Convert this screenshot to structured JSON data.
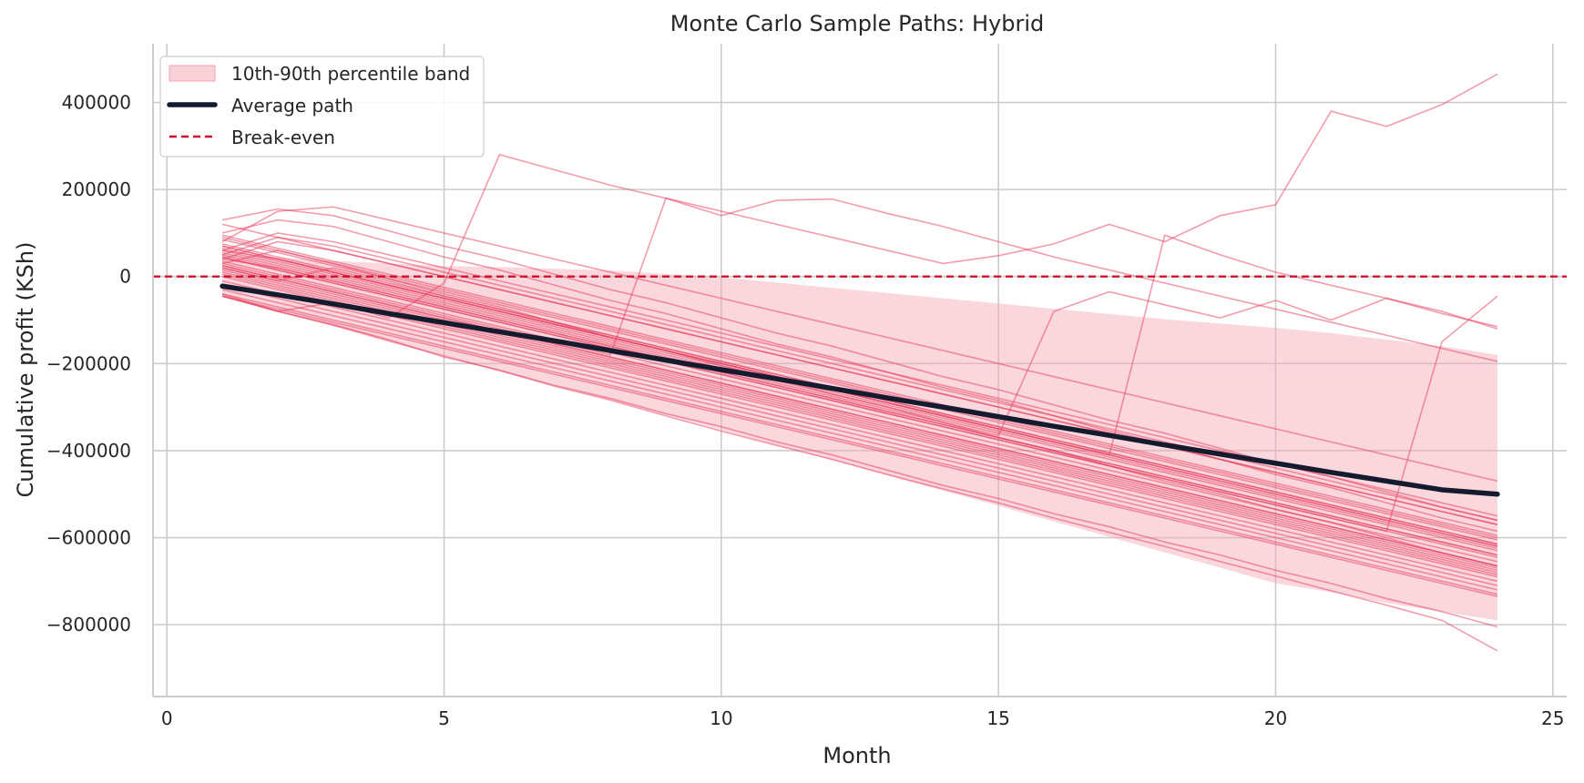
{
  "chart_data": {
    "type": "line",
    "title": "Monte Carlo Sample Paths: Hybrid",
    "xlabel": "Month",
    "ylabel": "Cumulative profit (KSh)",
    "xlim": [
      -0.25,
      25.25
    ],
    "ylim": [
      -965000,
      535000
    ],
    "xticks": [
      0,
      5,
      10,
      15,
      20,
      25
    ],
    "yticks": [
      400000,
      200000,
      0,
      -200000,
      -400000,
      -600000,
      -800000
    ],
    "grid": true,
    "legend_position": "top-left",
    "colors": {
      "paths": "#e8395c",
      "band": "#f4a3b3",
      "average": "#141b2e",
      "break_even": "#d0102a",
      "grid": "#cccccc"
    },
    "legend": [
      {
        "label": "10th-90th percentile band",
        "kind": "band"
      },
      {
        "label": "Average path",
        "kind": "average"
      },
      {
        "label": "Break-even",
        "kind": "break_even"
      }
    ],
    "x": [
      1,
      2,
      3,
      4,
      5,
      6,
      7,
      8,
      9,
      10,
      11,
      12,
      13,
      14,
      15,
      16,
      17,
      18,
      19,
      20,
      21,
      22,
      23,
      24
    ],
    "average_path": [
      -22000,
      -42000,
      -63000,
      -85000,
      -106000,
      -127000,
      -148000,
      -170000,
      -192000,
      -214000,
      -235000,
      -257000,
      -279000,
      -300000,
      -322000,
      -344000,
      -365000,
      -387000,
      -408000,
      -429000,
      -450000,
      -470000,
      -490000,
      -500000
    ],
    "band_p10": [
      -46000,
      -80000,
      -113000,
      -147000,
      -180000,
      -214000,
      -248000,
      -283000,
      -317000,
      -352000,
      -387000,
      -422000,
      -457000,
      -492000,
      -527000,
      -563000,
      -598000,
      -634000,
      -669000,
      -705000,
      -725000,
      -750000,
      -770000,
      -790000
    ],
    "band_p90": [
      52000,
      44000,
      36000,
      30000,
      24000,
      22000,
      18000,
      14000,
      6000,
      -2000,
      -14000,
      -26000,
      -38000,
      -50000,
      -62000,
      -74000,
      -86000,
      -98000,
      -108000,
      -118000,
      -130000,
      -145000,
      -160000,
      -180000
    ],
    "break_even": 0,
    "paths": [
      [
        -45000,
        -80000,
        -110000,
        -145000,
        -185000,
        -215000,
        -250000,
        -280000,
        -315000,
        -345000,
        -380000,
        -410000,
        -445000,
        -480000,
        -510000,
        -545000,
        -575000,
        -610000,
        -640000,
        -675000,
        -705000,
        -740000,
        -770000,
        -805000
      ],
      [
        -45000,
        -80000,
        -112000,
        -148000,
        -182000,
        -216000,
        -252000,
        -284000,
        -320000,
        -355000,
        -388000,
        -420000,
        -455000,
        -488000,
        -520000,
        -555000,
        -588000,
        -620000,
        -655000,
        -688000,
        -722000,
        -755000,
        -790000,
        -860000
      ],
      [
        30000,
        60000,
        30000,
        -5000,
        -40000,
        -70000,
        -105000,
        -140000,
        -170000,
        -205000,
        -235000,
        -270000,
        -300000,
        -335000,
        -370000,
        -400000,
        -435000,
        -470000,
        -500000,
        -535000,
        -565000,
        -600000,
        -635000,
        -665000
      ],
      [
        130000,
        155000,
        140000,
        105000,
        70000,
        40000,
        5000,
        -30000,
        -60000,
        -95000,
        -130000,
        -160000,
        -195000,
        -230000,
        -260000,
        -295000,
        -330000,
        -360000,
        -395000,
        -430000,
        -460000,
        -495000,
        -530000,
        -560000
      ],
      [
        100000,
        130000,
        115000,
        80000,
        45000,
        15000,
        -20000,
        -55000,
        -85000,
        -120000,
        -155000,
        -185000,
        -220000,
        -255000,
        -285000,
        -320000,
        -355000,
        -385000,
        -420000,
        -455000,
        -485000,
        -520000,
        -555000,
        -585000
      ],
      [
        60000,
        40000,
        10000,
        -20000,
        -50000,
        -80000,
        -110000,
        -140000,
        -170000,
        -200000,
        -230000,
        -260000,
        -290000,
        -320000,
        -350000,
        -380000,
        -410000,
        -440000,
        -470000,
        -500000,
        -530000,
        -560000,
        -590000,
        -620000
      ],
      [
        40000,
        20000,
        -10000,
        -40000,
        -70000,
        -100000,
        -130000,
        -160000,
        -190000,
        -220000,
        -250000,
        -280000,
        -310000,
        -340000,
        -370000,
        -400000,
        -430000,
        -460000,
        -490000,
        -520000,
        -550000,
        -580000,
        -610000,
        -640000
      ],
      [
        80000,
        150000,
        160000,
        130000,
        100000,
        70000,
        40000,
        10000,
        -20000,
        -50000,
        -80000,
        -110000,
        -140000,
        -170000,
        -200000,
        -230000,
        -260000,
        -290000,
        -320000,
        -350000,
        -380000,
        -410000,
        -440000,
        -470000
      ],
      [
        20000,
        -10000,
        20000,
        -10000,
        -45000,
        -75000,
        -105000,
        -135000,
        -165000,
        -195000,
        -225000,
        -255000,
        -285000,
        -315000,
        -345000,
        -375000,
        -405000,
        -435000,
        -465000,
        -495000,
        -525000,
        -555000,
        -585000,
        -615000
      ],
      [
        -40000,
        -80000,
        -60000,
        -95000,
        -15000,
        280000,
        245000,
        210000,
        180000,
        140000,
        175000,
        178000,
        145000,
        115000,
        80000,
        45000,
        15000,
        -15000,
        -45000,
        -75000,
        -105000,
        -135000,
        -165000,
        -195000
      ],
      [
        30000,
        0,
        -30000,
        -60000,
        -90000,
        -120000,
        -150000,
        -180000,
        180000,
        150000,
        120000,
        90000,
        60000,
        30000,
        48000,
        75000,
        120000,
        80000,
        140000,
        165000,
        380000,
        345000,
        395000,
        465000
      ],
      [
        55000,
        25000,
        -5000,
        -35000,
        -65000,
        -95000,
        -125000,
        -155000,
        -185000,
        -215000,
        -245000,
        -275000,
        -305000,
        -335000,
        -365000,
        -80000,
        -35000,
        -65000,
        -95000,
        -55000,
        -100000,
        -50000,
        -80000,
        -120000
      ],
      [
        70000,
        40000,
        10000,
        -20000,
        -50000,
        -80000,
        -110000,
        -140000,
        -170000,
        -200000,
        -230000,
        -260000,
        -290000,
        -320000,
        -350000,
        -380000,
        -410000,
        95000,
        50000,
        10000,
        -20000,
        -50000,
        -85000,
        -115000
      ],
      [
        45000,
        15000,
        -15000,
        -45000,
        -75000,
        -105000,
        -135000,
        -165000,
        -195000,
        -225000,
        -255000,
        -285000,
        -315000,
        -345000,
        -375000,
        -405000,
        -435000,
        -465000,
        -495000,
        -525000,
        -555000,
        -585000,
        -150000,
        -45000
      ],
      [
        90000,
        60000,
        30000,
        0,
        -30000,
        -60000,
        -90000,
        -120000,
        -150000,
        -180000,
        -210000,
        -240000,
        -270000,
        -300000,
        -330000,
        -360000,
        -390000,
        -420000,
        -450000,
        -480000,
        -510000,
        -540000,
        -570000,
        -600000
      ],
      [
        25000,
        -5000,
        -35000,
        -65000,
        -95000,
        -125000,
        -155000,
        -185000,
        -215000,
        -245000,
        -275000,
        -305000,
        -335000,
        -365000,
        -395000,
        -425000,
        -455000,
        -485000,
        -515000,
        -545000,
        -575000,
        -605000,
        -635000,
        -665000
      ],
      [
        50000,
        20000,
        -10000,
        -40000,
        -70000,
        -100000,
        -130000,
        -160000,
        -190000,
        -220000,
        -250000,
        -280000,
        -310000,
        -340000,
        -370000,
        -400000,
        -430000,
        -460000,
        -490000,
        -520000,
        -550000,
        -580000,
        -610000,
        -640000
      ],
      [
        10000,
        -20000,
        -50000,
        -80000,
        -110000,
        -140000,
        -170000,
        -200000,
        -230000,
        -260000,
        -290000,
        -320000,
        -350000,
        -380000,
        -410000,
        -440000,
        -470000,
        -500000,
        -530000,
        -560000,
        -590000,
        -620000,
        -650000,
        -680000
      ],
      [
        60000,
        100000,
        80000,
        50000,
        20000,
        -10000,
        -40000,
        -70000,
        -100000,
        -130000,
        -160000,
        -190000,
        -220000,
        -250000,
        -280000,
        -310000,
        -340000,
        -370000,
        -400000,
        -430000,
        -460000,
        -490000,
        -520000,
        -550000
      ],
      [
        35000,
        5000,
        -25000,
        -55000,
        -85000,
        -115000,
        -145000,
        -175000,
        -205000,
        -235000,
        -265000,
        -295000,
        -325000,
        -355000,
        -385000,
        -415000,
        -445000,
        -475000,
        -505000,
        -535000,
        -565000,
        -595000,
        -625000,
        -655000
      ],
      [
        120000,
        90000,
        60000,
        30000,
        0,
        -30000,
        -60000,
        -90000,
        -120000,
        -150000,
        -180000,
        -210000,
        -240000,
        -270000,
        -300000,
        -330000,
        -360000,
        -390000,
        -420000,
        -450000,
        -480000,
        -510000,
        -540000,
        -570000
      ],
      [
        -20000,
        -50000,
        -80000,
        -110000,
        -140000,
        -170000,
        -200000,
        -230000,
        -260000,
        -290000,
        -320000,
        -350000,
        -380000,
        -410000,
        -440000,
        -470000,
        -500000,
        -530000,
        -560000,
        -590000,
        -620000,
        -650000,
        -680000,
        -710000
      ],
      [
        75000,
        45000,
        15000,
        -15000,
        -45000,
        -75000,
        -105000,
        -135000,
        -165000,
        -195000,
        -225000,
        -255000,
        -285000,
        -315000,
        -345000,
        -375000,
        -405000,
        -435000,
        -465000,
        -495000,
        -525000,
        -555000,
        -585000,
        -615000
      ],
      [
        40000,
        80000,
        60000,
        30000,
        0,
        -30000,
        -60000,
        -90000,
        -120000,
        -150000,
        -180000,
        -210000,
        -240000,
        -270000,
        -300000,
        -330000,
        -360000,
        -390000,
        -420000,
        -450000,
        -480000,
        -510000,
        -540000,
        -570000
      ],
      [
        15000,
        -15000,
        -45000,
        -75000,
        -105000,
        -135000,
        -165000,
        -195000,
        -225000,
        -255000,
        -285000,
        -315000,
        -345000,
        -375000,
        -405000,
        -435000,
        -465000,
        -495000,
        -525000,
        -555000,
        -585000,
        -615000,
        -645000,
        -675000
      ],
      [
        95000,
        65000,
        35000,
        5000,
        -25000,
        -55000,
        -85000,
        -115000,
        -145000,
        -175000,
        -205000,
        -235000,
        -265000,
        -295000,
        -325000,
        -355000,
        -385000,
        -415000,
        -445000,
        -475000,
        -505000,
        -535000,
        -565000,
        -595000
      ],
      [
        5000,
        -25000,
        -55000,
        -85000,
        -115000,
        -145000,
        -175000,
        -205000,
        -235000,
        -265000,
        -295000,
        -325000,
        -355000,
        -385000,
        -415000,
        -445000,
        -475000,
        -505000,
        -535000,
        -565000,
        -595000,
        -625000,
        -655000,
        -685000
      ],
      [
        65000,
        35000,
        5000,
        -25000,
        -55000,
        -85000,
        -115000,
        -145000,
        -175000,
        -205000,
        -235000,
        -265000,
        -295000,
        -325000,
        -355000,
        -385000,
        -415000,
        -445000,
        -475000,
        -505000,
        -535000,
        -565000,
        -595000,
        -625000
      ],
      [
        -30000,
        -60000,
        -90000,
        -120000,
        -150000,
        -180000,
        -210000,
        -240000,
        -270000,
        -300000,
        -330000,
        -360000,
        -390000,
        -420000,
        -450000,
        -480000,
        -510000,
        -540000,
        -570000,
        -600000,
        -630000,
        -660000,
        -690000,
        -720000
      ],
      [
        50000,
        90000,
        70000,
        40000,
        10000,
        -20000,
        -50000,
        -80000,
        -110000,
        -140000,
        -170000,
        -200000,
        -230000,
        -260000,
        -290000,
        -320000,
        -350000,
        -380000,
        -410000,
        -440000,
        -470000,
        -500000,
        -530000,
        -560000
      ],
      [
        20000,
        -10000,
        -40000,
        -70000,
        -100000,
        -130000,
        -160000,
        -190000,
        -220000,
        -250000,
        -280000,
        -310000,
        -340000,
        -370000,
        -400000,
        -430000,
        -460000,
        -490000,
        -520000,
        -550000,
        -580000,
        -610000,
        -640000,
        -670000
      ],
      [
        85000,
        55000,
        25000,
        -5000,
        -35000,
        -65000,
        -95000,
        -125000,
        -155000,
        -185000,
        -215000,
        -245000,
        -275000,
        -305000,
        -335000,
        -365000,
        -395000,
        -425000,
        -455000,
        -485000,
        -515000,
        -545000,
        -575000,
        -605000
      ],
      [
        -10000,
        -40000,
        -70000,
        -100000,
        -130000,
        -160000,
        -190000,
        -220000,
        -250000,
        -280000,
        -310000,
        -340000,
        -370000,
        -400000,
        -430000,
        -460000,
        -490000,
        -520000,
        -550000,
        -580000,
        -610000,
        -640000,
        -670000,
        -700000
      ],
      [
        45000,
        15000,
        -15000,
        -45000,
        -75000,
        -105000,
        -135000,
        -165000,
        -195000,
        -225000,
        -255000,
        -285000,
        -315000,
        -345000,
        -375000,
        -405000,
        -435000,
        -465000,
        -495000,
        -525000,
        -555000,
        -585000,
        -615000,
        -645000
      ],
      [
        -40000,
        -70000,
        -100000,
        -130000,
        -160000,
        -190000,
        -220000,
        -250000,
        -280000,
        -310000,
        -340000,
        -370000,
        -400000,
        -430000,
        -460000,
        -490000,
        -520000,
        -550000,
        -580000,
        -610000,
        -640000,
        -670000,
        -700000,
        -730000
      ],
      [
        70000,
        40000,
        10000,
        -20000,
        -50000,
        -80000,
        -110000,
        -140000,
        -170000,
        -200000,
        -230000,
        -260000,
        -290000,
        -320000,
        -350000,
        -380000,
        -410000,
        -440000,
        -470000,
        -500000,
        -530000,
        -560000,
        -590000,
        -620000
      ],
      [
        0,
        -30000,
        -60000,
        -90000,
        -120000,
        -150000,
        -180000,
        -210000,
        -240000,
        -270000,
        -300000,
        -330000,
        -360000,
        -390000,
        -420000,
        -450000,
        -480000,
        -510000,
        -540000,
        -570000,
        -600000,
        -630000,
        -660000,
        -690000
      ],
      [
        60000,
        30000,
        0,
        -30000,
        -60000,
        -90000,
        -120000,
        -150000,
        -180000,
        -210000,
        -240000,
        -270000,
        -300000,
        -330000,
        -360000,
        -390000,
        -420000,
        -450000,
        -480000,
        -510000,
        -540000,
        -570000,
        -600000,
        -630000
      ],
      [
        25000,
        -5000,
        -35000,
        -65000,
        -95000,
        -125000,
        -155000,
        -185000,
        -215000,
        -245000,
        -275000,
        -305000,
        -335000,
        -365000,
        -395000,
        -425000,
        -455000,
        -485000,
        -515000,
        -545000,
        -575000,
        -605000,
        -635000,
        -665000
      ],
      [
        -45000,
        -75000,
        -105000,
        -135000,
        -165000,
        -195000,
        -225000,
        -255000,
        -285000,
        -315000,
        -345000,
        -375000,
        -405000,
        -435000,
        -465000,
        -495000,
        -525000,
        -555000,
        -585000,
        -615000,
        -645000,
        -675000,
        -705000,
        -735000
      ]
    ]
  }
}
